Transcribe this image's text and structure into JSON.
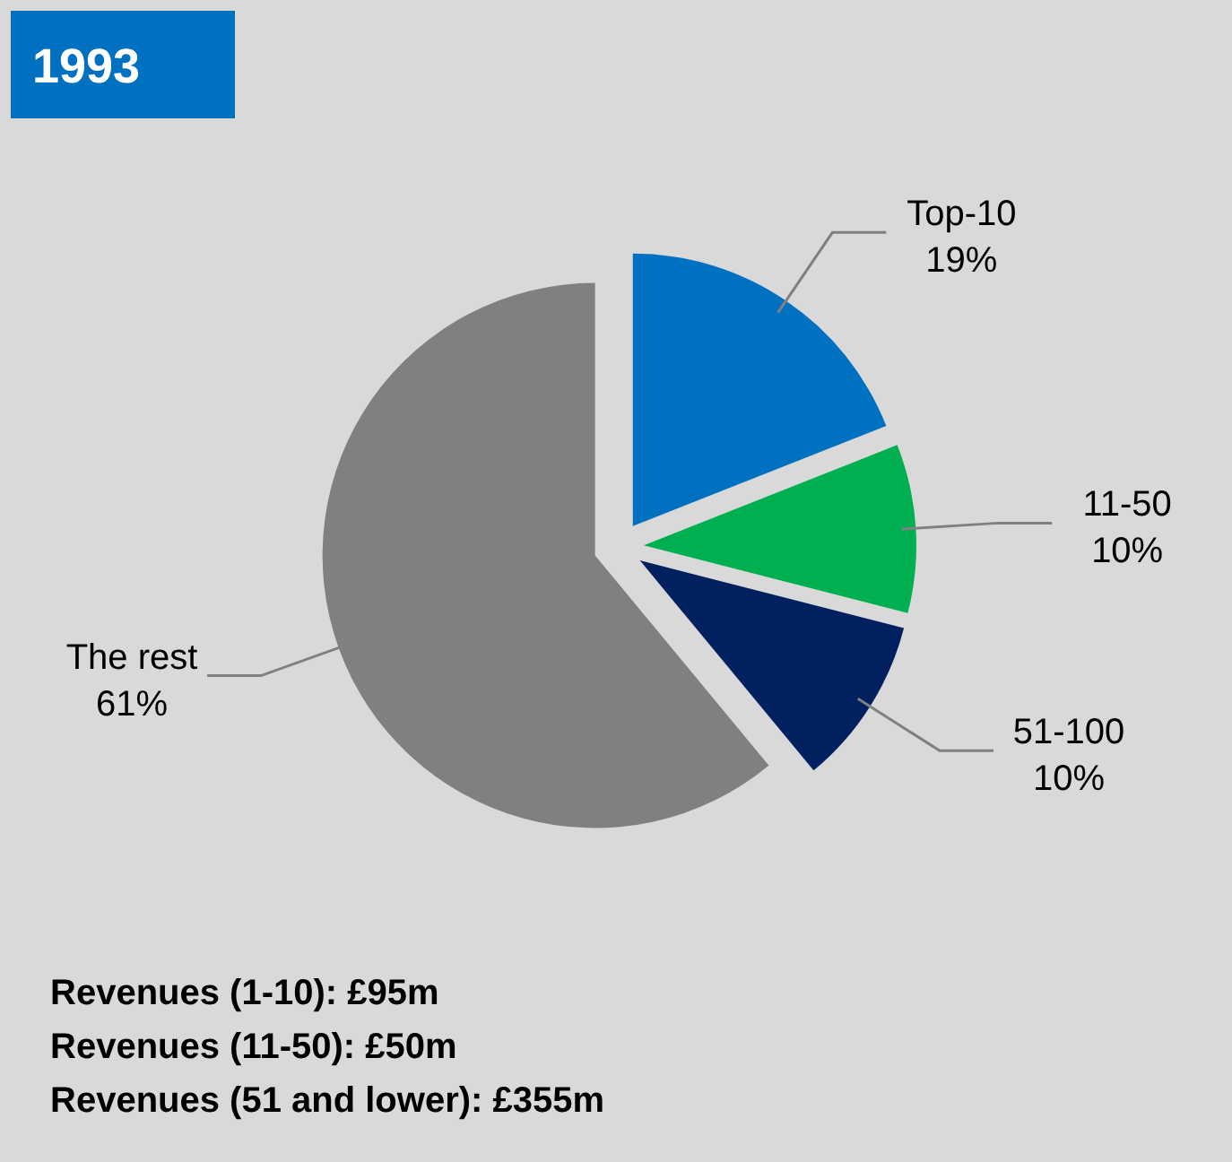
{
  "chart_data": {
    "type": "pie",
    "title": "1993",
    "categories": [
      "Top-10",
      "11-50",
      "51-100",
      "The rest"
    ],
    "values": [
      19,
      10,
      10,
      61
    ],
    "value_labels": [
      "19%",
      "10%",
      "10%",
      "61%"
    ],
    "colors": [
      "#0070c0",
      "#00b050",
      "#002060",
      "#808080"
    ],
    "annotations": [
      "Revenues (1-10): £95m",
      "Revenues (11-50): £50m",
      "Revenues (51 and lower): £355m"
    ]
  }
}
